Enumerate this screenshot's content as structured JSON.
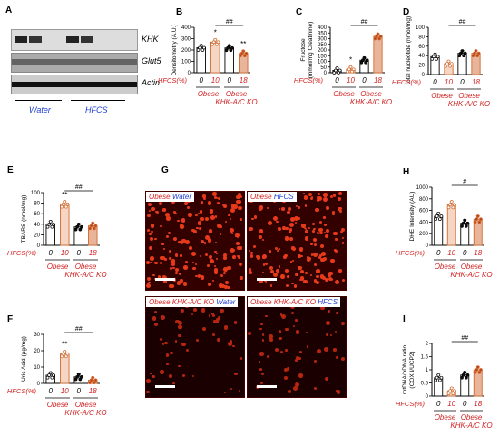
{
  "panels": {
    "A": {
      "label": "A",
      "blots": [
        "KHK",
        "Glut5",
        "Actin"
      ],
      "groups": [
        "Water",
        "HFCS"
      ]
    },
    "B": {
      "label": "B",
      "ylabel": "Densitometry (A.U.)",
      "sig": "##",
      "stars": "*",
      "stars2": "**"
    },
    "C": {
      "label": "C",
      "ylabel": "Fructose\n(mmol/mg Creatinine)",
      "sig": "##",
      "stars": "*"
    },
    "D": {
      "label": "D",
      "ylabel": "Total nucleotide (nmol/mg)",
      "sig": "##"
    },
    "E": {
      "label": "E",
      "ylabel": "TBARS (nmol/mg)",
      "sig": "##",
      "stars": "**"
    },
    "F": {
      "label": "F",
      "ylabel": "Uric Acid (µg/mg)",
      "sig": "##",
      "stars": "**"
    },
    "G": {
      "label": "G",
      "images": [
        {
          "strain": "Obese",
          "treat": "Water"
        },
        {
          "strain": "Obese",
          "treat": "HFCS"
        },
        {
          "strain": "Obese KHK-A/C KO",
          "treat": "Water"
        },
        {
          "strain": "Obese KHK-A/C KO",
          "treat": "HFCS"
        }
      ]
    },
    "H": {
      "label": "H",
      "ylabel": "DHE Intensity (AU)",
      "sig": "#"
    },
    "I": {
      "label": "I",
      "ylabel": "mtDNA/nDNA ratio\n(COXII/UCP2)",
      "sig": "##"
    }
  },
  "xaxis": {
    "row_label": "HFCS(%)",
    "ticks": [
      "0",
      "10",
      "0",
      "18"
    ],
    "group1": "Obese",
    "group2": "Obese\nKHK-A/C KO"
  },
  "chart_data": [
    {
      "panel": "B",
      "type": "bar",
      "categories": [
        "Obese 0",
        "Obese 10",
        "KO 0",
        "KO 18"
      ],
      "values": [
        220,
        270,
        218,
        170
      ],
      "ylim": [
        0,
        400
      ],
      "yticks": [
        0,
        100,
        200,
        300,
        400
      ]
    },
    {
      "panel": "C",
      "type": "bar",
      "categories": [
        "Obese 0",
        "Obese 10",
        "KO 0",
        "KO 18"
      ],
      "values": [
        20,
        30,
        110,
        320
      ],
      "ylim": [
        0,
        400
      ],
      "yticks": [
        0,
        50,
        100,
        150,
        200,
        250,
        300,
        350,
        400
      ]
    },
    {
      "panel": "D",
      "type": "bar",
      "categories": [
        "Obese 0",
        "Obese 10",
        "KO 0",
        "KO 18"
      ],
      "values": [
        38,
        23,
        45,
        45
      ],
      "ylim": [
        0,
        100
      ],
      "yticks": [
        0,
        20,
        40,
        60,
        80,
        100
      ]
    },
    {
      "panel": "E",
      "type": "bar",
      "categories": [
        "Obese 0",
        "Obese 10",
        "KO 0",
        "KO 18"
      ],
      "values": [
        40,
        78,
        35,
        37
      ],
      "ylim": [
        0,
        100
      ],
      "yticks": [
        0,
        20,
        40,
        60,
        80,
        100
      ]
    },
    {
      "panel": "F",
      "type": "bar",
      "categories": [
        "Obese 0",
        "Obese 10",
        "KO 0",
        "KO 18"
      ],
      "values": [
        5,
        18,
        4,
        2
      ],
      "ylim": [
        0,
        30
      ],
      "yticks": [
        0,
        10,
        20,
        30
      ]
    },
    {
      "panel": "H",
      "type": "bar",
      "categories": [
        "Obese 0",
        "Obese 10",
        "KO 0",
        "KO 18"
      ],
      "values": [
        500,
        700,
        380,
        450
      ],
      "ylim": [
        0,
        1000
      ],
      "yticks": [
        0,
        200,
        400,
        600,
        800,
        1000
      ]
    },
    {
      "panel": "I",
      "type": "bar",
      "categories": [
        "Obese 0",
        "Obese 10",
        "KO 0",
        "KO 18"
      ],
      "values": [
        0.7,
        0.2,
        0.8,
        1.0
      ],
      "ylim": [
        0,
        2.0
      ],
      "yticks": [
        0,
        0.5,
        1.0,
        1.5,
        2.0
      ]
    }
  ],
  "colors": {
    "white": "#ffffff",
    "bar10": "#f5d6c4",
    "barKO0": "#ffffff",
    "bar18": "#e8b49a",
    "stroke10": "#d06a30",
    "text_red": "#d22222",
    "text_blue": "#1f3fd0"
  }
}
